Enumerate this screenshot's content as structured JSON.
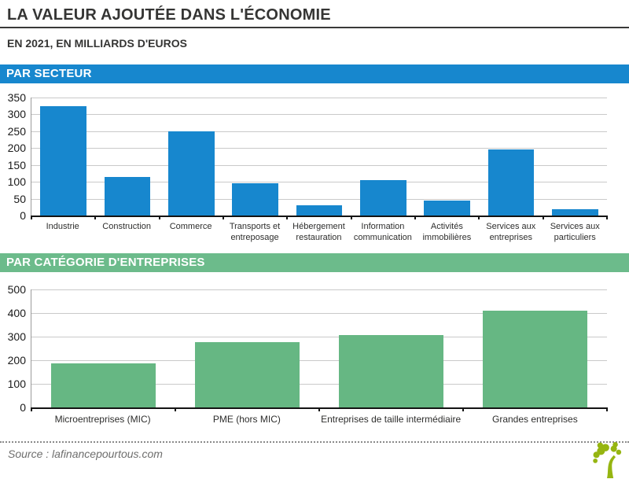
{
  "header": {
    "title": "LA VALEUR AJOUTÉE DANS L'ÉCONOMIE",
    "subtitle": "EN 2021, EN MILLIARDS D'EUROS"
  },
  "banners": {
    "sector": {
      "label": "PAR SECTEUR",
      "color": "#1787ce"
    },
    "category": {
      "label": "PAR CATÉGORIE D'ENTREPRISES",
      "color": "#6cbb8b"
    }
  },
  "chart_data": [
    {
      "type": "bar",
      "title": "Par secteur",
      "categories": [
        "Industrie",
        "Construction",
        "Commerce",
        "Transports et entreposage",
        "Hébergement restauration",
        "Information communication",
        "Activités immobilières",
        "Services aux entreprises",
        "Services aux particuliers"
      ],
      "values": [
        325,
        115,
        250,
        95,
        30,
        105,
        45,
        195,
        18
      ],
      "xlabel": "",
      "ylabel": "milliards d'euros",
      "ylim": [
        0,
        350
      ],
      "ytick_step": 50,
      "grid": true,
      "legend": false,
      "bar_color": "#1787ce"
    },
    {
      "type": "bar",
      "title": "Par catégorie d'entreprises",
      "categories": [
        "Microentreprises (MIC)",
        "PME (hors MIC)",
        "Entreprises de taille intermédiaire",
        "Grandes entreprises"
      ],
      "values": [
        185,
        275,
        305,
        410
      ],
      "xlabel": "",
      "ylabel": "milliards d'euros",
      "ylim": [
        0,
        500
      ],
      "ytick_step": 100,
      "grid": true,
      "legend": false,
      "bar_color": "#66b783"
    }
  ],
  "footer": {
    "source_label": "Source : lafinancepourtous.com",
    "logo": "tree-logo"
  },
  "colors": {
    "title_text": "#353534",
    "axis_line": "#141414",
    "gridline": "#c9c9c9",
    "source_text": "#6e6e6d",
    "logo_green": "#96b511"
  }
}
